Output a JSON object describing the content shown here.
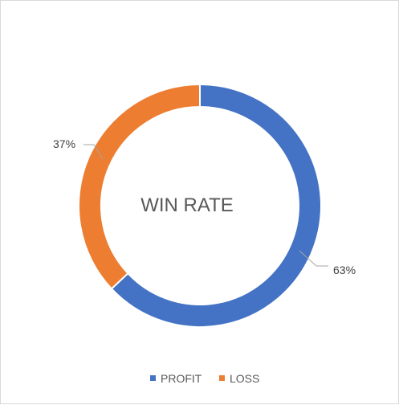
{
  "chart_data": {
    "type": "pie",
    "subtype": "doughnut",
    "center_title": "WIN RATE",
    "categories": [
      "PROFIT",
      "LOSS"
    ],
    "values": [
      63,
      37
    ],
    "data_labels": [
      "63%",
      "37%"
    ],
    "colors": [
      "#4472C4",
      "#ED7D31"
    ],
    "legend": {
      "position": "bottom",
      "entries": [
        "PROFIT",
        "LOSS"
      ]
    },
    "start_angle_deg": 0,
    "direction": "clockwise"
  }
}
